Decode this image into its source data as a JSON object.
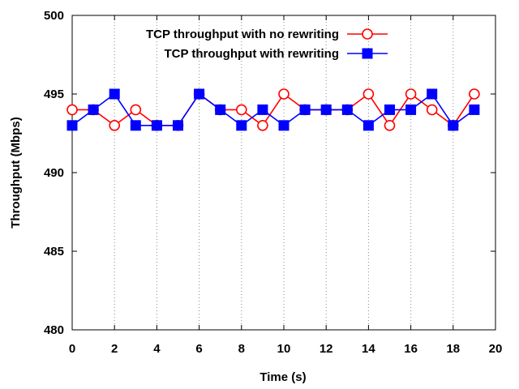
{
  "chart_data": {
    "type": "line",
    "title": "",
    "xlabel": "Time (s)",
    "ylabel": "Throughput (Mbps)",
    "xlim": [
      0,
      20
    ],
    "ylim": [
      480,
      500
    ],
    "xticks": [
      0,
      2,
      4,
      6,
      8,
      10,
      12,
      14,
      16,
      18,
      20
    ],
    "yticks": [
      480,
      485,
      490,
      495,
      500
    ],
    "grid": "vertical dotted lines at x ticks",
    "legend_position": "top-right",
    "x": [
      0,
      1,
      2,
      3,
      4,
      5,
      6,
      7,
      8,
      9,
      10,
      11,
      12,
      13,
      14,
      15,
      16,
      17,
      18,
      19
    ],
    "series": [
      {
        "name": "TCP throughput with no rewriting",
        "color": "#ff0000",
        "marker": "open-circle",
        "values": [
          494,
          494,
          493,
          494,
          493,
          493,
          495,
          494,
          494,
          493,
          495,
          494,
          494,
          494,
          495,
          493,
          495,
          494,
          493,
          495
        ]
      },
      {
        "name": "TCP throughput with rewriting",
        "color": "#0000ff",
        "marker": "filled-square",
        "values": [
          493,
          494,
          495,
          493,
          493,
          493,
          495,
          494,
          493,
          494,
          493,
          494,
          494,
          494,
          493,
          494,
          494,
          495,
          493,
          494
        ]
      }
    ]
  }
}
